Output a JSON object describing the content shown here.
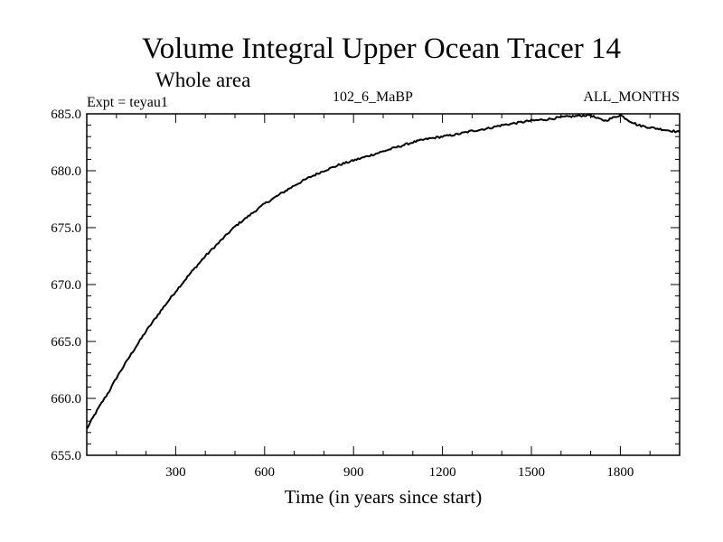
{
  "chart_data": {
    "type": "line",
    "title": "Volume Integral Upper Ocean Tracer 14",
    "subtitle": "Whole area",
    "expt_label": "Expt = teyau1",
    "run_label": "102_6_MaBP",
    "months_label": "ALL_MONTHS",
    "xlabel": "Time (in years since start)",
    "ylabel": "",
    "xlim": [
      0,
      2000
    ],
    "ylim": [
      655.0,
      685.0
    ],
    "x_ticks": [
      300,
      600,
      900,
      1200,
      1500,
      1800
    ],
    "x_tick_labels": [
      "300",
      "600",
      "900",
      "1200",
      "1500",
      "1800"
    ],
    "y_ticks": [
      655.0,
      660.0,
      665.0,
      670.0,
      675.0,
      680.0,
      685.0
    ],
    "y_tick_labels": [
      "655.0",
      "660.0",
      "665.0",
      "670.0",
      "675.0",
      "680.0",
      "685.0"
    ],
    "grid": false,
    "line_color": "#000000",
    "series": [
      {
        "x": [
          0,
          25,
          50,
          75,
          100,
          150,
          200,
          250,
          300,
          350,
          400,
          450,
          500,
          550,
          600,
          650,
          700,
          750,
          800,
          850,
          900,
          950,
          1000,
          1050,
          1100,
          1150,
          1200,
          1250,
          1300,
          1350,
          1400,
          1450,
          1500,
          1550,
          1600,
          1650,
          1700,
          1720,
          1750,
          1780,
          1800,
          1830,
          1860,
          1900,
          1950,
          2000
        ],
        "y": [
          657.3,
          658.5,
          659.6,
          660.6,
          661.8,
          663.9,
          665.9,
          667.7,
          669.4,
          671.0,
          672.5,
          673.8,
          675.1,
          676.1,
          677.1,
          677.9,
          678.7,
          679.4,
          680.0,
          680.5,
          680.9,
          681.3,
          681.7,
          682.1,
          682.5,
          682.8,
          683.0,
          683.2,
          683.5,
          683.7,
          684.0,
          684.2,
          684.4,
          684.5,
          684.7,
          684.8,
          684.9,
          684.6,
          684.4,
          684.7,
          684.9,
          684.4,
          684.0,
          683.8,
          683.6,
          683.4
        ]
      }
    ]
  }
}
